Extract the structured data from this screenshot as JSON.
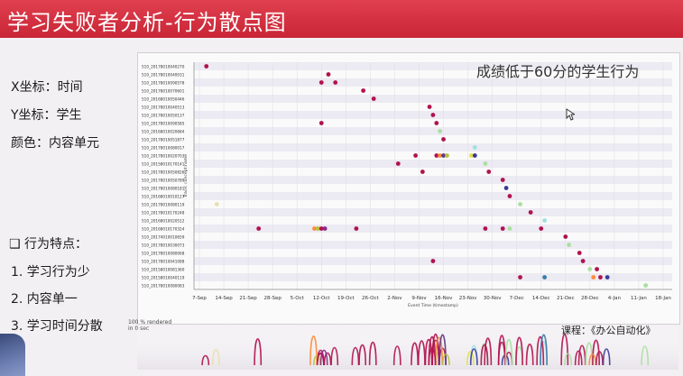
{
  "header": {
    "title": "学习失败者分析-行为散点图"
  },
  "left_panel": {
    "x_axis": "X坐标：时间",
    "y_axis": "Y坐标：学生",
    "color": "颜色：内容单元",
    "traits_heading": "❑ 行为特点：",
    "traits": [
      "1. 学习行为少",
      "2. 内容单一",
      "3. 学习时间分散"
    ]
  },
  "overlay_title": "成绩低于60分的学生行为",
  "course_label": "课程：《办公自动化》",
  "render_note": [
    "100 % rendered",
    "in 0 sec"
  ],
  "chart_data": {
    "type": "scatter",
    "xlabel": "Event Time (timestamp)",
    "ylabel": "Trace: concept:name",
    "x_ticks": [
      "7-Sep",
      "14-Sep",
      "21-Sep",
      "28-Sep",
      "5-Oct",
      "12-Oct",
      "19-Oct",
      "26-Oct",
      "2-Nov",
      "9-Nov",
      "16-Nov",
      "23-Nov",
      "30-Nov",
      "7-Dec",
      "14-Dec",
      "21-Dec",
      "28-Dec",
      "4-Jan",
      "11-Jan",
      "18-Jan"
    ],
    "traces": [
      "510_20178010040270",
      "510_20178010040031",
      "510_20178010090578",
      "510_20178010070601",
      "510_20168010050446",
      "510_20178010040513",
      "510_20178010050137",
      "510_20178010090585",
      "510_20168010020684",
      "510_20178010051877",
      "510_20178010080017",
      "510_20178010020703",
      "510_20158010170141",
      "510_20178010050826",
      "510_20178010050789",
      "510_20178010080181",
      "510_20168010010127",
      "510_20178010080119",
      "510_20178010170248",
      "510_20168010020512",
      "510_20168010170324",
      "510_20174010010659",
      "510_20178010030073",
      "510_20178010080068",
      "510_20178010041088",
      "510_20158010081360",
      "510_20158010040119",
      "510_20178010080083"
    ],
    "points": [
      {
        "trace": 0,
        "x": "2017-09-09",
        "color": "#b0124e"
      },
      {
        "trace": 1,
        "x": "2017-10-14",
        "color": "#b0124e"
      },
      {
        "trace": 2,
        "x": "2017-10-12",
        "color": "#b0124e"
      },
      {
        "trace": 2,
        "x": "2017-10-16",
        "color": "#b0124e"
      },
      {
        "trace": 3,
        "x": "2017-10-24",
        "color": "#b0124e"
      },
      {
        "trace": 4,
        "x": "2017-10-27",
        "color": "#b0124e"
      },
      {
        "trace": 5,
        "x": "2017-11-12",
        "color": "#b0124e"
      },
      {
        "trace": 6,
        "x": "2017-11-13",
        "color": "#b0124e"
      },
      {
        "trace": 7,
        "x": "2017-11-14",
        "color": "#b0124e"
      },
      {
        "trace": 7,
        "x": "2017-10-12",
        "color": "#b0124e"
      },
      {
        "trace": 8,
        "x": "2017-11-15",
        "color": "#a8e0a0"
      },
      {
        "trace": 9,
        "x": "2017-11-16",
        "color": "#b0124e"
      },
      {
        "trace": 10,
        "x": "2017-11-25",
        "color": "#a0e0e0"
      },
      {
        "trace": 11,
        "x": "2017-11-08",
        "color": "#b0124e"
      },
      {
        "trace": 11,
        "x": "2017-11-14",
        "color": "#b0124e"
      },
      {
        "trace": 11,
        "x": "2017-11-15",
        "color": "#ff8c3a"
      },
      {
        "trace": 11,
        "x": "2017-11-16",
        "color": "#5a3a8a"
      },
      {
        "trace": 11,
        "x": "2017-11-17",
        "color": "#b8c040"
      },
      {
        "trace": 11,
        "x": "2017-11-24",
        "color": "#e0e040"
      },
      {
        "trace": 11,
        "x": "2017-11-25",
        "color": "#3a3a9a"
      },
      {
        "trace": 12,
        "x": "2017-11-03",
        "color": "#b0124e"
      },
      {
        "trace": 12,
        "x": "2017-11-28",
        "color": "#a8e0a0"
      },
      {
        "trace": 13,
        "x": "2017-11-10",
        "color": "#b0124e"
      },
      {
        "trace": 13,
        "x": "2017-11-29",
        "color": "#b0124e"
      },
      {
        "trace": 14,
        "x": "2017-12-03",
        "color": "#b0124e"
      },
      {
        "trace": 15,
        "x": "2017-12-04",
        "color": "#3a3a9a"
      },
      {
        "trace": 16,
        "x": "2017-12-05",
        "color": "#b0124e"
      },
      {
        "trace": 17,
        "x": "2017-09-12",
        "color": "#e8e0b0"
      },
      {
        "trace": 17,
        "x": "2017-12-08",
        "color": "#a8e0a0"
      },
      {
        "trace": 18,
        "x": "2017-12-11",
        "color": "#b0124e"
      },
      {
        "trace": 19,
        "x": "2017-12-15",
        "color": "#a0e0e0"
      },
      {
        "trace": 20,
        "x": "2017-09-24",
        "color": "#b0124e"
      },
      {
        "trace": 20,
        "x": "2017-10-10",
        "color": "#ff8c3a"
      },
      {
        "trace": 20,
        "x": "2017-10-11",
        "color": "#b8c040"
      },
      {
        "trace": 20,
        "x": "2017-10-12",
        "color": "#b0124e"
      },
      {
        "trace": 20,
        "x": "2017-10-13",
        "color": "#8a2a8a"
      },
      {
        "trace": 20,
        "x": "2017-10-22",
        "color": "#b0124e"
      },
      {
        "trace": 20,
        "x": "2017-11-28",
        "color": "#b0124e"
      },
      {
        "trace": 20,
        "x": "2017-12-03",
        "color": "#b0124e"
      },
      {
        "trace": 20,
        "x": "2017-12-05",
        "color": "#a8e0a0"
      },
      {
        "trace": 20,
        "x": "2017-12-14",
        "color": "#b0124e"
      },
      {
        "trace": 21,
        "x": "2017-12-21",
        "color": "#b0124e"
      },
      {
        "trace": 22,
        "x": "2017-12-22",
        "color": "#a8e0a0"
      },
      {
        "trace": 23,
        "x": "2017-12-25",
        "color": "#b0124e"
      },
      {
        "trace": 24,
        "x": "2017-11-13",
        "color": "#b0124e"
      },
      {
        "trace": 24,
        "x": "2017-12-26",
        "color": "#b0124e"
      },
      {
        "trace": 25,
        "x": "2017-12-28",
        "color": "#a8e0a0"
      },
      {
        "trace": 25,
        "x": "2017-12-30",
        "color": "#b0124e"
      },
      {
        "trace": 26,
        "x": "2017-12-08",
        "color": "#b0124e"
      },
      {
        "trace": 26,
        "x": "2017-12-15",
        "color": "#3a7aaa"
      },
      {
        "trace": 26,
        "x": "2017-12-29",
        "color": "#ff8c3a"
      },
      {
        "trace": 26,
        "x": "2017-12-31",
        "color": "#b0124e"
      },
      {
        "trace": 26,
        "x": "2018-01-02",
        "color": "#3a3a9a"
      },
      {
        "trace": 27,
        "x": "2018-01-13",
        "color": "#a8e0a0"
      }
    ]
  }
}
